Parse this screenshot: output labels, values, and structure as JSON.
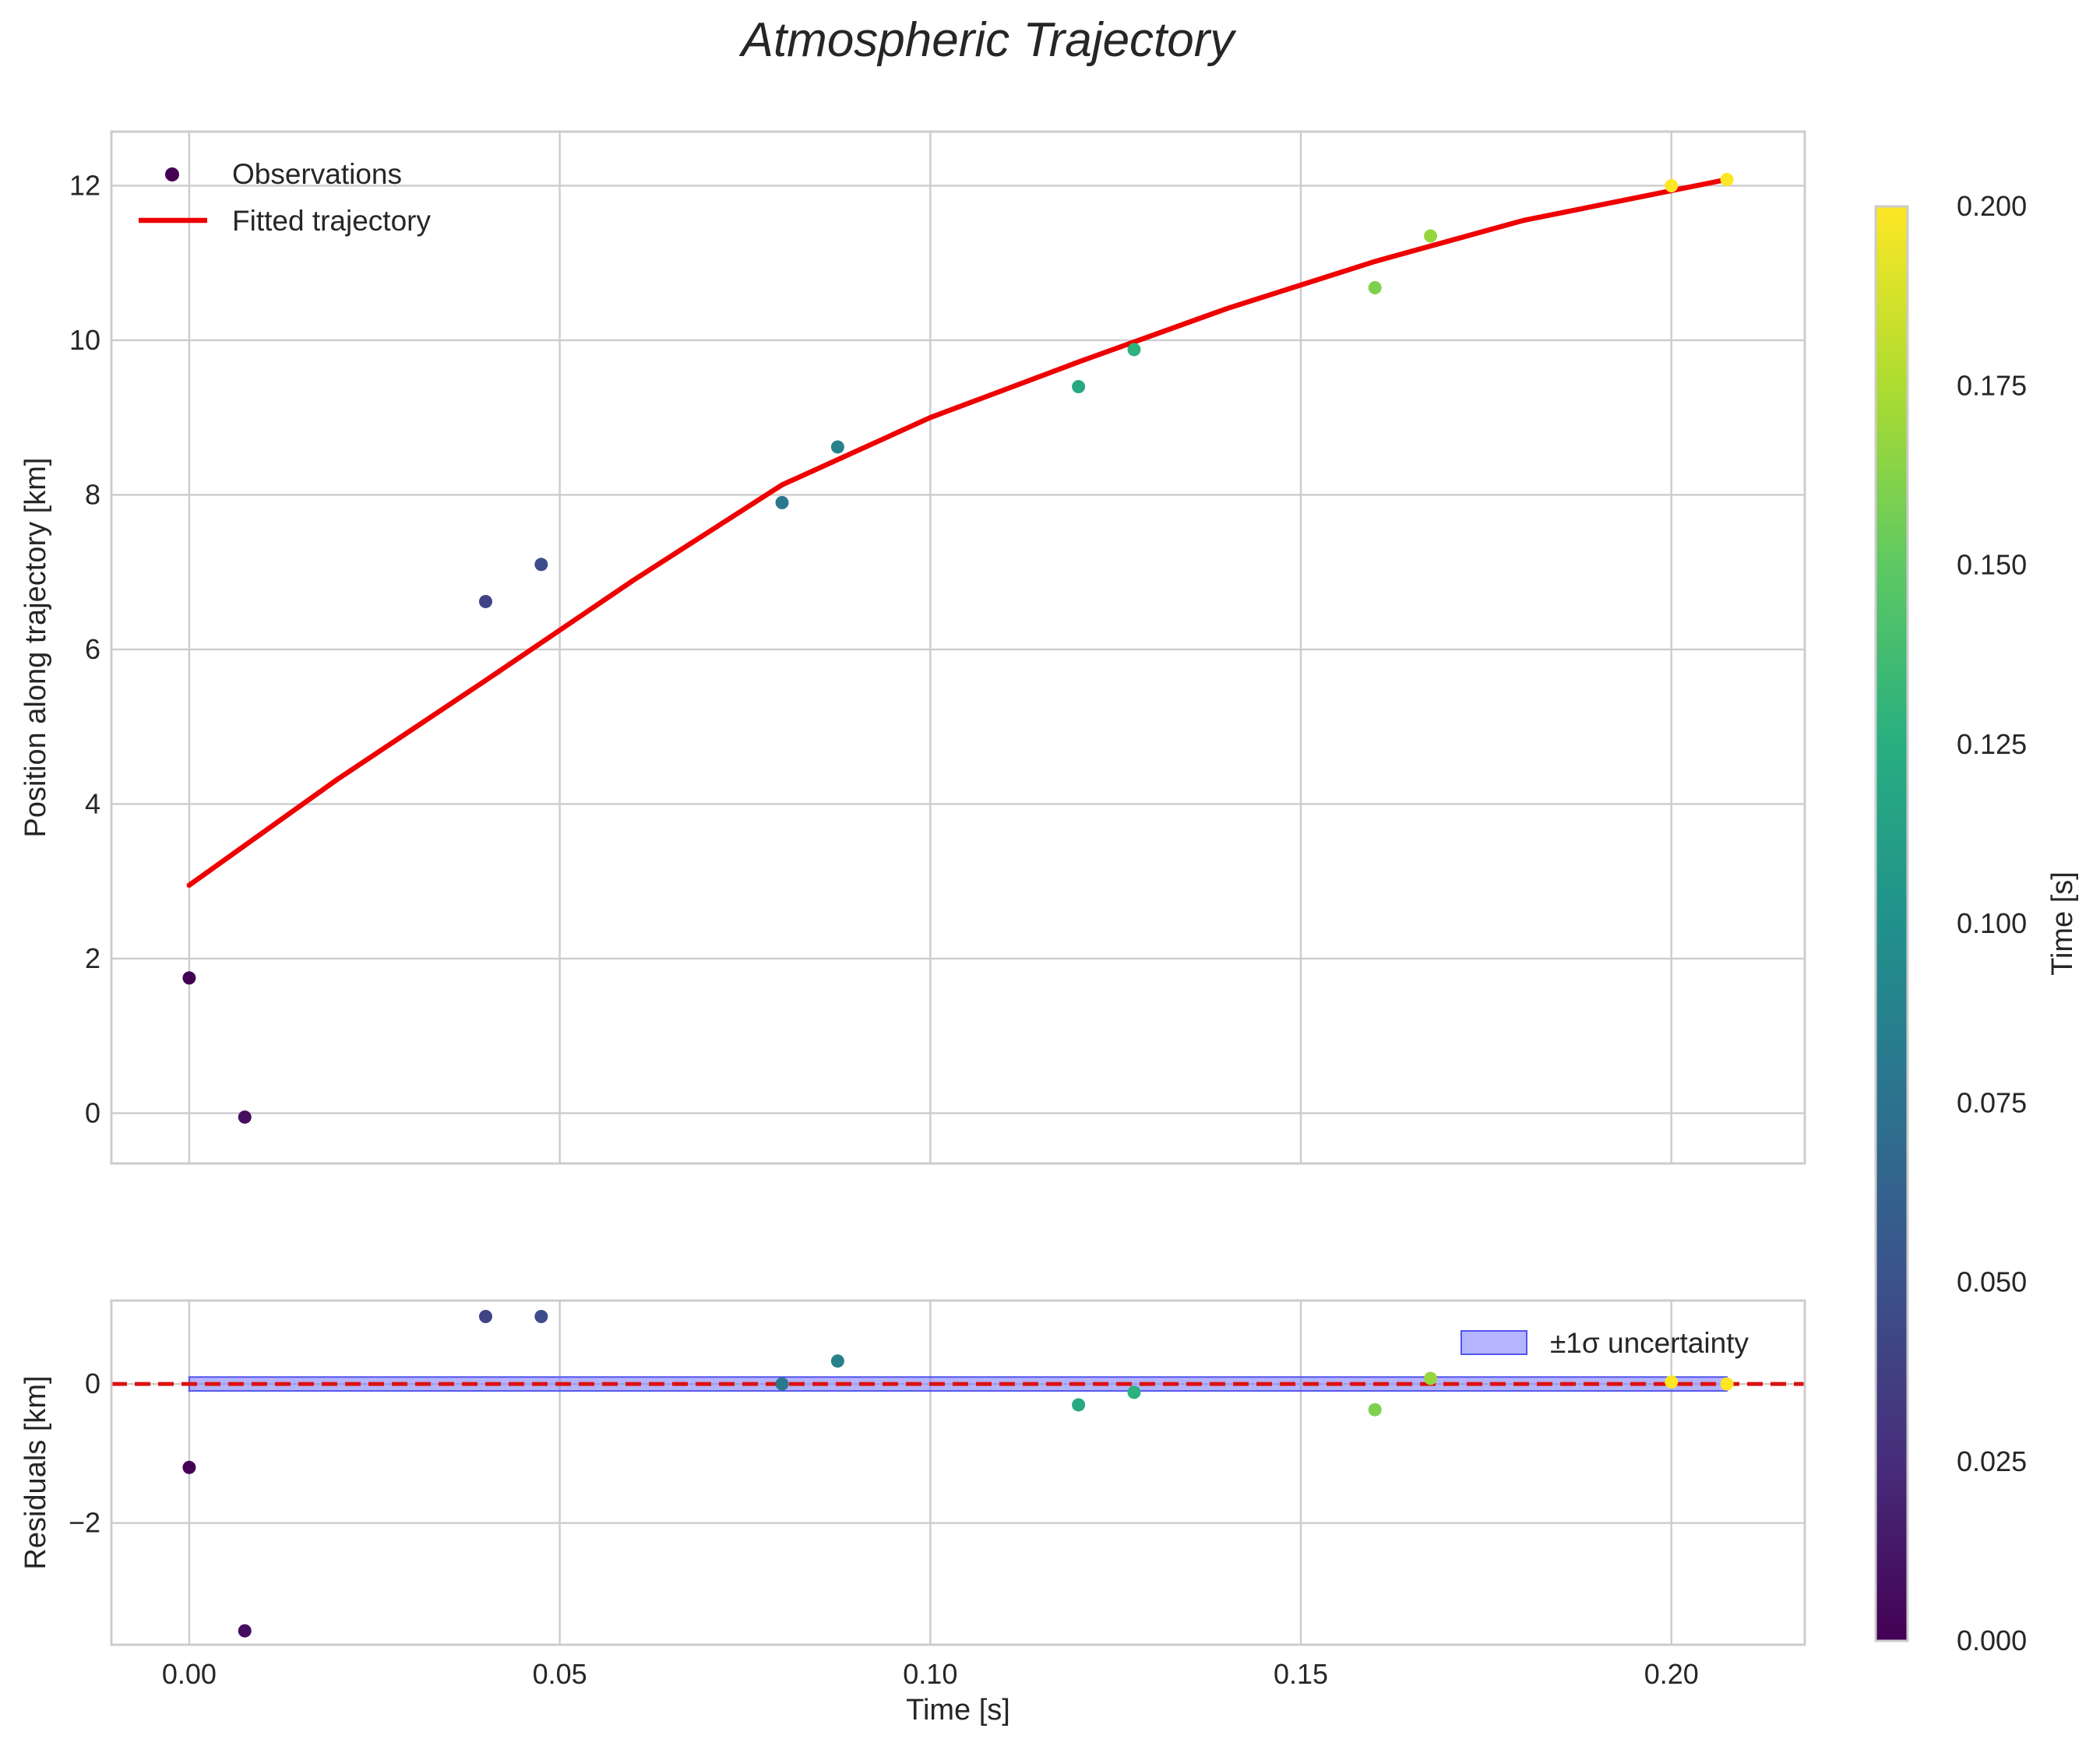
{
  "chart_data": [
    {
      "panel": "main",
      "type": "scatter",
      "title": "Atmospheric Trajectory",
      "xlabel": "",
      "ylabel": "Position along trajectory [km]",
      "xlim": [
        -0.0105,
        0.218
      ],
      "ylim": [
        -0.65,
        12.7
      ],
      "xticks": [
        0.0,
        0.05,
        0.1,
        0.15,
        0.2
      ],
      "yticks": [
        0,
        2,
        4,
        6,
        8,
        10,
        12
      ],
      "ytick_labels": [
        "0",
        "2",
        "4",
        "6",
        "8",
        "10",
        "12"
      ],
      "grid": true,
      "legend": {
        "position": "top-left",
        "entries": [
          "Observations",
          "Fitted trajectory"
        ]
      },
      "series": [
        {
          "name": "Observations",
          "kind": "scatter",
          "x": [
            0.0,
            0.0075,
            0.04,
            0.0475,
            0.08,
            0.0875,
            0.12,
            0.1275,
            0.16,
            0.1675,
            0.2,
            0.2075
          ],
          "y": [
            1.75,
            -0.05,
            6.62,
            7.1,
            7.9,
            8.62,
            9.4,
            9.88,
            10.68,
            11.35,
            12.0,
            12.08
          ]
        },
        {
          "name": "Fitted trajectory",
          "kind": "line",
          "color": "#ee0000",
          "x": [
            0.0,
            0.02,
            0.04,
            0.06,
            0.08,
            0.1,
            0.12,
            0.14,
            0.16,
            0.18,
            0.2075
          ],
          "y": [
            2.95,
            4.32,
            5.6,
            6.9,
            8.13,
            9.0,
            9.72,
            10.41,
            11.02,
            11.55,
            12.08
          ]
        }
      ]
    },
    {
      "panel": "residuals",
      "type": "scatter",
      "xlabel": "Time [s]",
      "ylabel": "Residuals [km]",
      "xlim": [
        -0.0105,
        0.218
      ],
      "ylim": [
        -3.75,
        1.2
      ],
      "xticks": [
        0.0,
        0.05,
        0.1,
        0.15,
        0.2
      ],
      "xtick_labels": [
        "0.00",
        "0.05",
        "0.10",
        "0.15",
        "0.20"
      ],
      "yticks": [
        -2,
        0
      ],
      "ytick_labels": [
        "−2",
        "0"
      ],
      "grid": true,
      "legend": {
        "position": "top-right",
        "entries": [
          "±1σ uncertainty"
        ]
      },
      "reference_line": {
        "y": 0,
        "style": "dashed",
        "color": "#dd1111"
      },
      "uncertainty_band": {
        "lower": -0.1,
        "upper": 0.1,
        "x_range": [
          0.0,
          0.2075
        ],
        "color": "#7777ff"
      },
      "series": [
        {
          "name": "Residuals",
          "kind": "scatter",
          "x": [
            0.0,
            0.0075,
            0.04,
            0.0475,
            0.08,
            0.0875,
            0.12,
            0.1275,
            0.16,
            0.1675,
            0.2,
            0.2075
          ],
          "y": [
            -1.2,
            -3.55,
            0.97,
            0.97,
            0.0,
            0.33,
            -0.3,
            -0.12,
            -0.37,
            0.08,
            0.03,
            0.0
          ]
        }
      ]
    }
  ],
  "colorbar": {
    "label": "Time [s]",
    "colormap": "viridis",
    "range": [
      0.0,
      0.2
    ],
    "ticks": [
      0.0,
      0.025,
      0.05,
      0.075,
      0.1,
      0.125,
      0.15,
      0.175,
      0.2
    ],
    "tick_labels": [
      "0.000",
      "0.025",
      "0.050",
      "0.075",
      "0.100",
      "0.125",
      "0.150",
      "0.175",
      "0.200"
    ],
    "point_color_values": [
      0.0,
      0.0075,
      0.04,
      0.0475,
      0.08,
      0.0875,
      0.12,
      0.1275,
      0.16,
      0.1675,
      0.2,
      0.2075
    ]
  }
}
